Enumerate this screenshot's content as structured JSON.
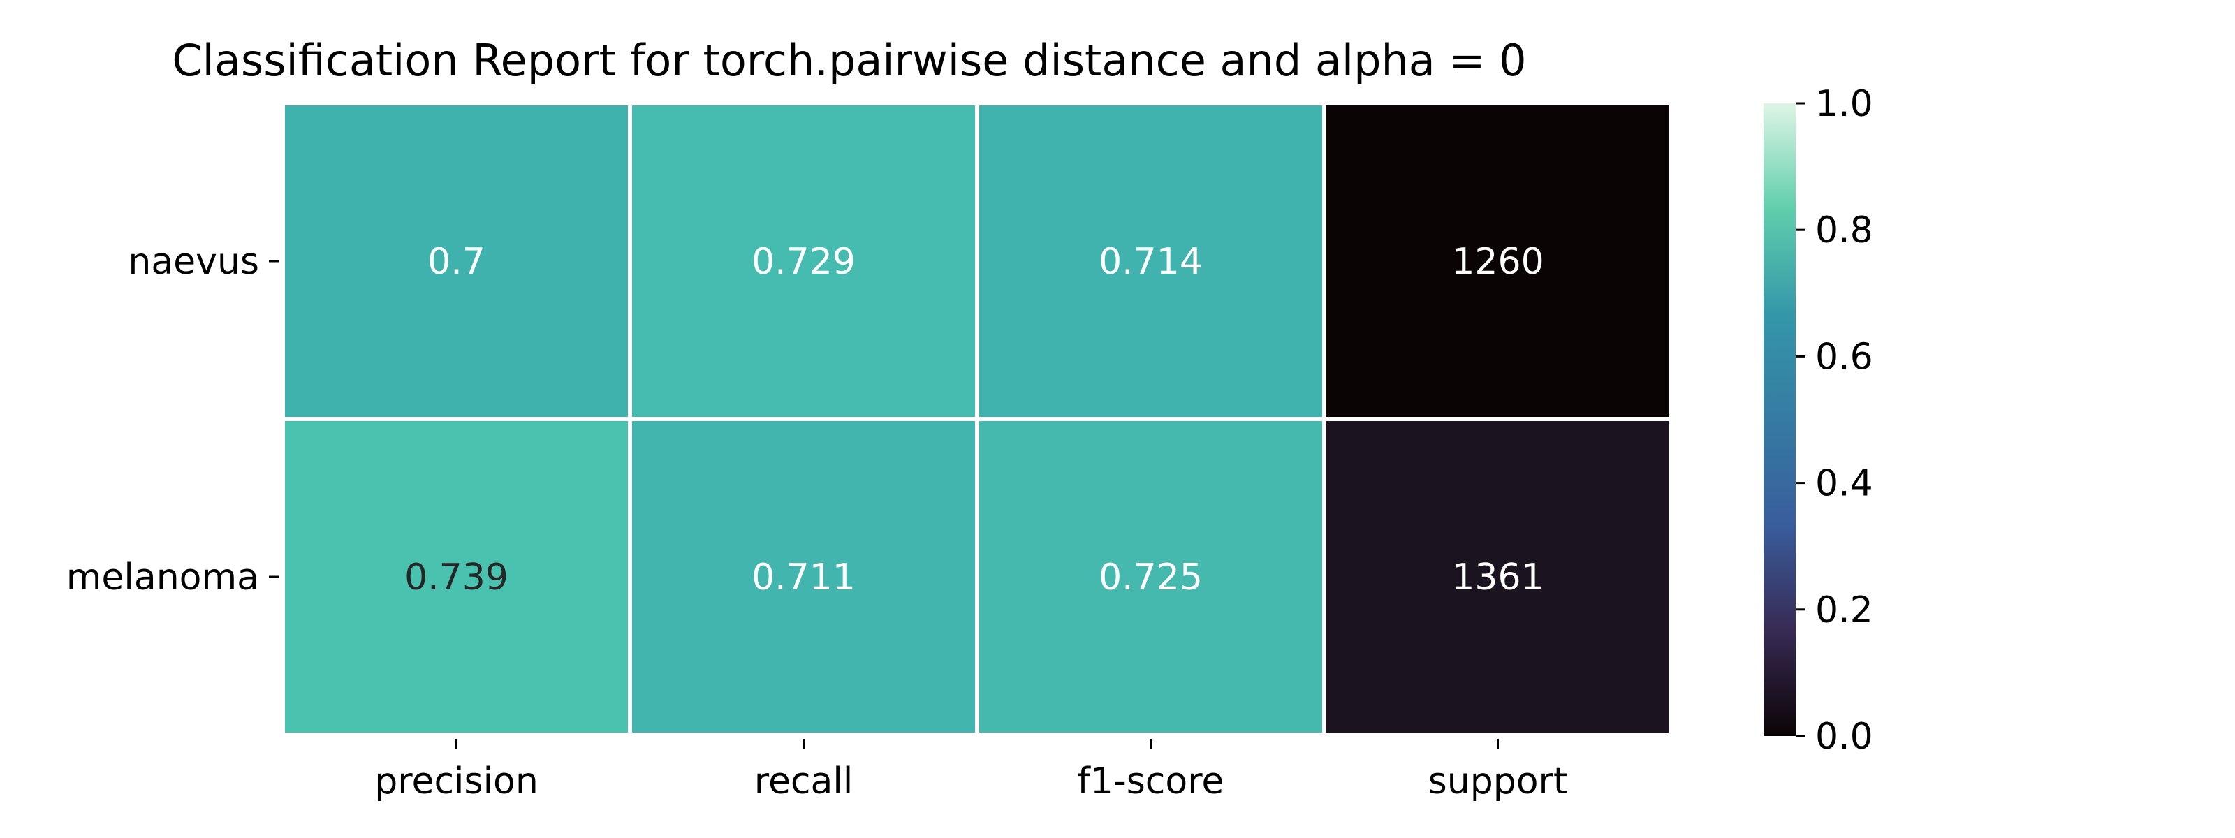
{
  "chart_data": {
    "type": "heatmap",
    "title": "Classification Report for torch.pairwise distance and alpha = 0",
    "xlabel": "",
    "ylabel": "",
    "columns": [
      "precision",
      "recall",
      "f1-score",
      "support"
    ],
    "rows": [
      "naevus",
      "melanoma"
    ],
    "cell_labels": [
      [
        "0.7",
        "0.729",
        "0.714",
        "1260"
      ],
      [
        "0.739",
        "0.711",
        "0.725",
        "1361"
      ]
    ],
    "values": [
      [
        0.7,
        0.729,
        0.714,
        1260
      ],
      [
        0.739,
        0.711,
        0.725,
        1361
      ]
    ],
    "colormap": "mako",
    "color_range": [
      0.0,
      1.0
    ],
    "colorbar": {
      "ticks": [
        "0.0",
        "0.2",
        "0.4",
        "0.6",
        "0.8",
        "1.0"
      ],
      "values": [
        0.0,
        0.2,
        0.4,
        0.6,
        0.8,
        1.0
      ]
    },
    "cell_colors": [
      [
        "#3fb2ae",
        "#46bcb0",
        "#41b3ae",
        "#0b0405"
      ],
      [
        "#49c2b0",
        "#41b5ae",
        "#46b9af",
        "#1c1320"
      ]
    ],
    "annotation_colors": [
      [
        "#ffffff",
        "#ffffff",
        "#ffffff",
        "#ffffff"
      ],
      [
        "#262626",
        "#ffffff",
        "#ffffff",
        "#ffffff"
      ]
    ],
    "colorbar_stops": [
      "#0b0405",
      "#382a54",
      "#395d9c",
      "#357ba3",
      "#3497a9",
      "#60ceac",
      "#def5e5"
    ],
    "grid": false,
    "legend": "colorbar-right"
  }
}
